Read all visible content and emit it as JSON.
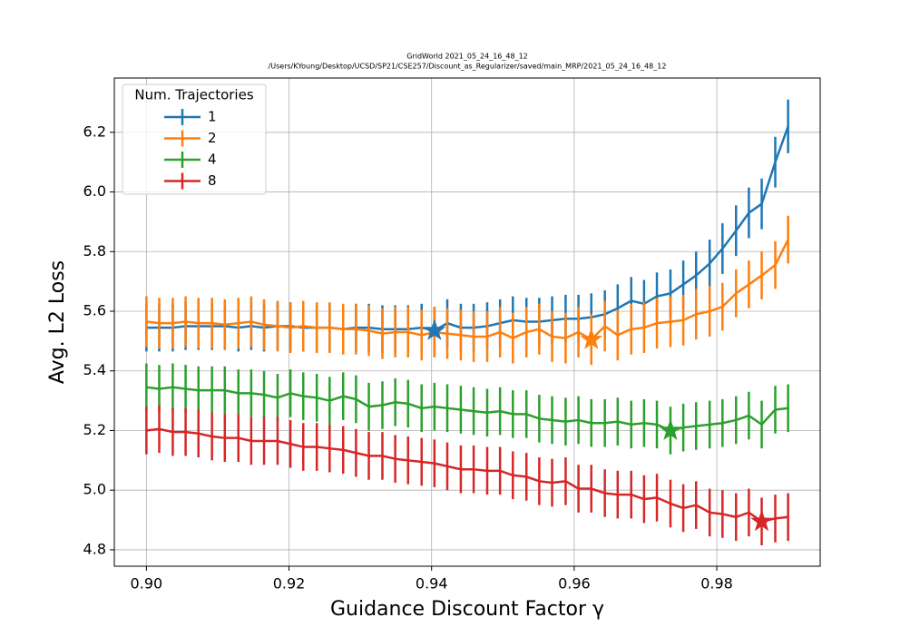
{
  "chart_data": {
    "type": "errorbar-line",
    "title": "GridWorld  2021_05_24_16_48_12",
    "subtitle": "/Users/KYoung/Desktop/UCSD/SP21/CSE257/Discount_as_Regularizer/saved/main_MRP/2021_05_24_16_48_12",
    "xlabel": "Guidance Discount Factor γ",
    "ylabel": "Avg. L2 Loss",
    "legend_title": "Num. Trajectories",
    "legend_position": "upper left",
    "grid": true,
    "xlim": [
      0.8955,
      0.9945
    ],
    "ylim": [
      4.745,
      6.382
    ],
    "xticks": [
      {
        "value": 0.9,
        "label": "0.90"
      },
      0.92,
      0.94,
      0.96,
      0.98
    ],
    "yticks": [
      4.8,
      {
        "value": 5.0,
        "label": "5.0"
      },
      5.2,
      5.4,
      5.6,
      5.8,
      {
        "value": 6.0,
        "label": "6.0"
      },
      6.2
    ],
    "x": [
      0.9,
      0.9018,
      0.9037,
      0.9055,
      0.9073,
      0.9092,
      0.911,
      0.9129,
      0.9147,
      0.9165,
      0.9184,
      0.9202,
      0.922,
      0.9239,
      0.9257,
      0.9276,
      0.9294,
      0.9312,
      0.9331,
      0.9349,
      0.9367,
      0.9386,
      0.9404,
      0.9422,
      0.9441,
      0.9459,
      0.9478,
      0.9496,
      0.9514,
      0.9533,
      0.9551,
      0.9569,
      0.9588,
      0.9606,
      0.9624,
      0.9643,
      0.9661,
      0.968,
      0.9698,
      0.9716,
      0.9735,
      0.9753,
      0.9771,
      0.979,
      0.9808,
      0.9827,
      0.9845,
      0.9863,
      0.9882,
      0.99
    ],
    "series": [
      {
        "name": "1",
        "color": "#1f77b4",
        "values": [
          5.545,
          5.545,
          5.545,
          5.55,
          5.55,
          5.55,
          5.55,
          5.545,
          5.55,
          5.545,
          5.55,
          5.55,
          5.545,
          5.545,
          5.545,
          5.54,
          5.545,
          5.545,
          5.54,
          5.54,
          5.54,
          5.545,
          5.535,
          5.56,
          5.545,
          5.545,
          5.55,
          5.56,
          5.57,
          5.565,
          5.565,
          5.57,
          5.575,
          5.575,
          5.58,
          5.59,
          5.61,
          5.635,
          5.625,
          5.65,
          5.66,
          5.69,
          5.72,
          5.76,
          5.81,
          5.87,
          5.93,
          5.96,
          6.1,
          6.22
        ],
        "errors": [
          0.08,
          0.08,
          0.08,
          0.08,
          0.08,
          0.08,
          0.08,
          0.08,
          0.08,
          0.08,
          0.08,
          0.08,
          0.08,
          0.08,
          0.08,
          0.08,
          0.08,
          0.08,
          0.08,
          0.08,
          0.08,
          0.08,
          0.08,
          0.08,
          0.08,
          0.08,
          0.08,
          0.08,
          0.08,
          0.08,
          0.08,
          0.08,
          0.08,
          0.08,
          0.08,
          0.08,
          0.08,
          0.08,
          0.08,
          0.08,
          0.08,
          0.08,
          0.08,
          0.08,
          0.085,
          0.085,
          0.085,
          0.085,
          0.085,
          0.09
        ],
        "best_x": 0.9404,
        "best_y": 5.535
      },
      {
        "name": "2",
        "color": "#ff7f0e",
        "values": [
          5.565,
          5.56,
          5.56,
          5.565,
          5.56,
          5.56,
          5.555,
          5.56,
          5.565,
          5.555,
          5.55,
          5.545,
          5.55,
          5.545,
          5.545,
          5.54,
          5.54,
          5.535,
          5.525,
          5.53,
          5.53,
          5.52,
          5.53,
          5.525,
          5.52,
          5.515,
          5.515,
          5.53,
          5.51,
          5.53,
          5.54,
          5.515,
          5.51,
          5.53,
          5.505,
          5.55,
          5.52,
          5.54,
          5.545,
          5.56,
          5.565,
          5.57,
          5.59,
          5.6,
          5.615,
          5.66,
          5.69,
          5.72,
          5.755,
          5.84
        ],
        "errors": [
          0.085,
          0.085,
          0.085,
          0.085,
          0.085,
          0.085,
          0.085,
          0.085,
          0.085,
          0.085,
          0.085,
          0.085,
          0.085,
          0.085,
          0.085,
          0.085,
          0.085,
          0.085,
          0.085,
          0.085,
          0.085,
          0.085,
          0.085,
          0.085,
          0.085,
          0.085,
          0.085,
          0.085,
          0.085,
          0.085,
          0.085,
          0.085,
          0.085,
          0.085,
          0.085,
          0.085,
          0.085,
          0.085,
          0.085,
          0.085,
          0.085,
          0.085,
          0.085,
          0.085,
          0.08,
          0.08,
          0.08,
          0.08,
          0.08,
          0.08
        ],
        "best_x": 0.9624,
        "best_y": 5.505
      },
      {
        "name": "4",
        "color": "#2ca02c",
        "values": [
          5.345,
          5.34,
          5.345,
          5.34,
          5.335,
          5.335,
          5.335,
          5.325,
          5.325,
          5.32,
          5.31,
          5.325,
          5.315,
          5.31,
          5.3,
          5.315,
          5.305,
          5.28,
          5.285,
          5.295,
          5.29,
          5.275,
          5.28,
          5.275,
          5.27,
          5.265,
          5.26,
          5.265,
          5.255,
          5.255,
          5.24,
          5.235,
          5.23,
          5.235,
          5.225,
          5.225,
          5.23,
          5.22,
          5.225,
          5.22,
          5.2,
          5.21,
          5.215,
          5.22,
          5.225,
          5.235,
          5.25,
          5.22,
          5.27,
          5.275
        ],
        "errors": [
          0.08,
          0.08,
          0.08,
          0.08,
          0.08,
          0.08,
          0.08,
          0.08,
          0.08,
          0.08,
          0.08,
          0.08,
          0.08,
          0.08,
          0.08,
          0.08,
          0.08,
          0.08,
          0.08,
          0.08,
          0.08,
          0.08,
          0.08,
          0.08,
          0.08,
          0.08,
          0.08,
          0.08,
          0.08,
          0.08,
          0.08,
          0.08,
          0.08,
          0.08,
          0.08,
          0.08,
          0.08,
          0.08,
          0.08,
          0.08,
          0.08,
          0.08,
          0.08,
          0.08,
          0.08,
          0.08,
          0.08,
          0.08,
          0.08,
          0.08
        ],
        "best_x": 0.9735,
        "best_y": 5.2
      },
      {
        "name": "8",
        "color": "#d62728",
        "values": [
          5.2,
          5.205,
          5.195,
          5.195,
          5.19,
          5.18,
          5.175,
          5.175,
          5.165,
          5.165,
          5.165,
          5.155,
          5.145,
          5.145,
          5.14,
          5.135,
          5.125,
          5.115,
          5.115,
          5.105,
          5.1,
          5.095,
          5.09,
          5.08,
          5.07,
          5.07,
          5.065,
          5.065,
          5.05,
          5.045,
          5.03,
          5.025,
          5.03,
          5.005,
          5.005,
          4.99,
          4.985,
          4.985,
          4.97,
          4.975,
          4.955,
          4.94,
          4.95,
          4.925,
          4.92,
          4.91,
          4.925,
          4.895,
          4.905,
          4.91
        ],
        "errors": [
          0.08,
          0.08,
          0.08,
          0.08,
          0.08,
          0.08,
          0.08,
          0.08,
          0.08,
          0.08,
          0.08,
          0.08,
          0.08,
          0.08,
          0.08,
          0.08,
          0.08,
          0.08,
          0.08,
          0.08,
          0.08,
          0.08,
          0.08,
          0.08,
          0.08,
          0.08,
          0.08,
          0.08,
          0.08,
          0.08,
          0.08,
          0.08,
          0.08,
          0.08,
          0.08,
          0.08,
          0.08,
          0.08,
          0.08,
          0.08,
          0.08,
          0.08,
          0.08,
          0.08,
          0.08,
          0.08,
          0.08,
          0.08,
          0.08,
          0.08
        ],
        "best_x": 0.9863,
        "best_y": 4.895
      }
    ]
  }
}
